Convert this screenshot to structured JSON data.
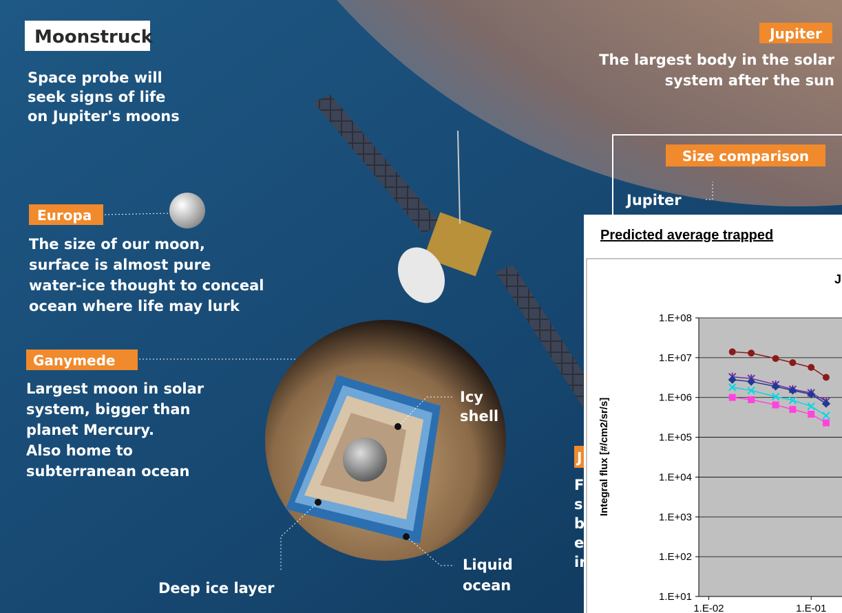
{
  "infographic": {
    "title": "Moonstruck",
    "subtitle": [
      "Space probe will",
      "seek signs of life",
      "on Jupiter's moons"
    ],
    "jupiter": {
      "tag": "Jupiter",
      "lines": [
        "The largest body in the solar",
        "system after the sun"
      ]
    },
    "size_comparison": {
      "tag": "Size comparison",
      "label": "Jupiter"
    },
    "europa": {
      "tag": "Europa",
      "lines": [
        "The size of our moon,",
        "surface is almost pure",
        "water-ice thought to conceal",
        "ocean where life may lurk"
      ]
    },
    "ganymede": {
      "tag": "Ganymede",
      "lines": [
        "Largest moon in solar",
        "system, bigger than",
        "planet Mercury.",
        "Also home to",
        "subterranean ocean"
      ]
    },
    "layers": {
      "icy_shell": [
        "Icy",
        "shell"
      ],
      "liquid_ocean": [
        "Liquid",
        "ocean"
      ],
      "deep_ice": "Deep ice layer"
    },
    "partial": {
      "tag": "J",
      "lines": [
        "F",
        "s",
        "b",
        "e",
        "ir"
      ]
    }
  },
  "chart_data": {
    "type": "line",
    "title": "Predicted average trapped",
    "subtitle": "J",
    "y_label": "Integral flux [#/cm2/sr/s]",
    "log_x": true,
    "log_y": true,
    "grid": true,
    "x": [
      0.017,
      0.026,
      0.045,
      0.066,
      0.1,
      0.14
    ],
    "xlim": [
      0.008,
      0.2
    ],
    "xticks": [
      {
        "value": 0.01,
        "label": "1.E-02"
      },
      {
        "value": 0.1,
        "label": "1.E-01"
      }
    ],
    "ylim": [
      10,
      100000000
    ],
    "yticks": [
      {
        "value": 100000000,
        "label": "1.E+08"
      },
      {
        "value": 10000000,
        "label": "1.E+07"
      },
      {
        "value": 1000000,
        "label": "1.E+06"
      },
      {
        "value": 100000,
        "label": "1.E+05"
      },
      {
        "value": 10000,
        "label": "1.E+04"
      },
      {
        "value": 1000,
        "label": "1.E+03"
      },
      {
        "value": 100,
        "label": "1.E+02"
      },
      {
        "value": 10,
        "label": "1.E+01"
      }
    ],
    "series": [
      {
        "color": "#8b1a1a",
        "marker": "circle",
        "values": [
          14000000,
          13000000,
          9500000,
          7500000,
          5700000,
          3200000
        ]
      },
      {
        "color": "#7030a0",
        "marker": "star",
        "values": [
          3300000,
          3000000,
          2100000,
          1600000,
          1300000,
          800000
        ]
      },
      {
        "color": "#1f3a93",
        "marker": "diamond",
        "values": [
          2800000,
          2500000,
          1900000,
          1500000,
          1200000,
          700000
        ]
      },
      {
        "color": "#00d8e8",
        "marker": "cross",
        "values": [
          1800000,
          1500000,
          1050000,
          850000,
          600000,
          350000
        ]
      },
      {
        "color": "#ff44dd",
        "marker": "square",
        "values": [
          1000000,
          880000,
          650000,
          500000,
          380000,
          230000
        ]
      }
    ]
  }
}
